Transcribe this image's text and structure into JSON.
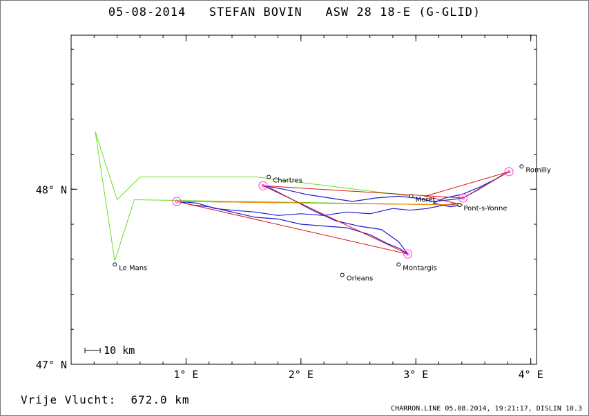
{
  "header": {
    "date": "05-08-2014",
    "pilot": "STEFAN BOVIN",
    "glider": "ASW 28 18-E (G-GLID)"
  },
  "footer": {
    "distance_label": "Vrije Vlucht:",
    "distance_value": "672.0 km",
    "program_info": "CHARRON.LINE 05.08.2014, 19:21:17, DISLIN 10.3"
  },
  "scale_bar": {
    "label": "10 km",
    "length_km": 10
  },
  "colors": {
    "task": "#66dd22",
    "optimized": "#dd1111",
    "track": "#1a1ad6",
    "turnpoint": "#ff33cc",
    "start_finish": "#ee9900"
  },
  "chart_data": {
    "type": "map",
    "xlim": [
      0.0,
      4.05
    ],
    "ylim": [
      47.0,
      48.88
    ],
    "x_ticks": [
      {
        "value": 1,
        "label": "1° E"
      },
      {
        "value": 2,
        "label": "2° E"
      },
      {
        "value": 3,
        "label": "3° E"
      },
      {
        "value": 4,
        "label": "4° E"
      }
    ],
    "y_ticks": [
      {
        "value": 47,
        "label": "47° N"
      },
      {
        "value": 48,
        "label": "48° N"
      }
    ],
    "cities": [
      {
        "name": "Chartres",
        "lon": 1.72,
        "lat": 48.07
      },
      {
        "name": "Romilly",
        "lon": 3.92,
        "lat": 48.13
      },
      {
        "name": "Moret",
        "lon": 2.96,
        "lat": 47.96
      },
      {
        "name": "Pont-s-Yonne",
        "lon": 3.38,
        "lat": 47.91
      },
      {
        "name": "Le Mans",
        "lon": 0.38,
        "lat": 47.57
      },
      {
        "name": "Montargis",
        "lon": 2.85,
        "lat": 47.57
      },
      {
        "name": "Orleans",
        "lon": 2.36,
        "lat": 47.51
      }
    ],
    "task_route": [
      [
        2.96,
        47.96
      ],
      [
        1.61,
        48.07
      ],
      [
        0.6,
        48.07
      ],
      [
        0.4,
        47.94
      ],
      [
        0.21,
        48.33
      ],
      [
        0.38,
        47.59
      ],
      [
        0.55,
        47.94
      ],
      [
        3.38,
        47.91
      ]
    ],
    "optimized_route": [
      [
        3.41,
        47.91
      ],
      [
        0.92,
        47.93
      ],
      [
        2.93,
        47.63
      ],
      [
        1.67,
        48.02
      ],
      [
        3.41,
        47.95
      ],
      [
        3.81,
        48.1
      ],
      [
        3.08,
        47.96
      ],
      [
        3.41,
        47.91
      ]
    ],
    "turnpoints": [
      [
        0.92,
        47.93
      ],
      [
        1.67,
        48.02
      ],
      [
        2.93,
        47.63
      ],
      [
        3.81,
        48.1
      ],
      [
        3.41,
        47.95
      ]
    ],
    "track": [
      [
        3.39,
        47.92
      ],
      [
        3.25,
        47.91
      ],
      [
        3.1,
        47.89
      ],
      [
        2.95,
        47.88
      ],
      [
        2.8,
        47.89
      ],
      [
        2.6,
        47.86
      ],
      [
        2.4,
        47.87
      ],
      [
        2.2,
        47.85
      ],
      [
        2.0,
        47.86
      ],
      [
        1.8,
        47.85
      ],
      [
        1.6,
        47.87
      ],
      [
        1.4,
        47.88
      ],
      [
        1.25,
        47.89
      ],
      [
        1.1,
        47.92
      ],
      [
        0.95,
        47.93
      ],
      [
        1.05,
        47.91
      ],
      [
        1.2,
        47.9
      ],
      [
        1.4,
        47.87
      ],
      [
        1.6,
        47.84
      ],
      [
        1.8,
        47.83
      ],
      [
        2.0,
        47.8
      ],
      [
        2.2,
        47.79
      ],
      [
        2.4,
        47.78
      ],
      [
        2.6,
        47.74
      ],
      [
        2.75,
        47.69
      ],
      [
        2.86,
        47.66
      ],
      [
        2.93,
        47.63
      ],
      [
        2.85,
        47.7
      ],
      [
        2.7,
        47.77
      ],
      [
        2.5,
        47.79
      ],
      [
        2.3,
        47.82
      ],
      [
        2.1,
        47.88
      ],
      [
        1.9,
        47.95
      ],
      [
        1.75,
        48.0
      ],
      [
        1.67,
        48.02
      ],
      [
        1.85,
        48.0
      ],
      [
        2.05,
        47.97
      ],
      [
        2.25,
        47.95
      ],
      [
        2.45,
        47.93
      ],
      [
        2.65,
        47.95
      ],
      [
        2.85,
        47.96
      ],
      [
        3.0,
        47.95
      ],
      [
        3.15,
        47.93
      ],
      [
        3.3,
        47.94
      ],
      [
        3.41,
        47.95
      ],
      [
        3.55,
        48.0
      ],
      [
        3.65,
        48.04
      ],
      [
        3.75,
        48.08
      ],
      [
        3.81,
        48.1
      ],
      [
        3.7,
        48.06
      ],
      [
        3.55,
        48.01
      ],
      [
        3.4,
        47.97
      ],
      [
        3.25,
        47.95
      ],
      [
        3.15,
        47.92
      ],
      [
        3.3,
        47.9
      ],
      [
        3.41,
        47.91
      ]
    ]
  }
}
